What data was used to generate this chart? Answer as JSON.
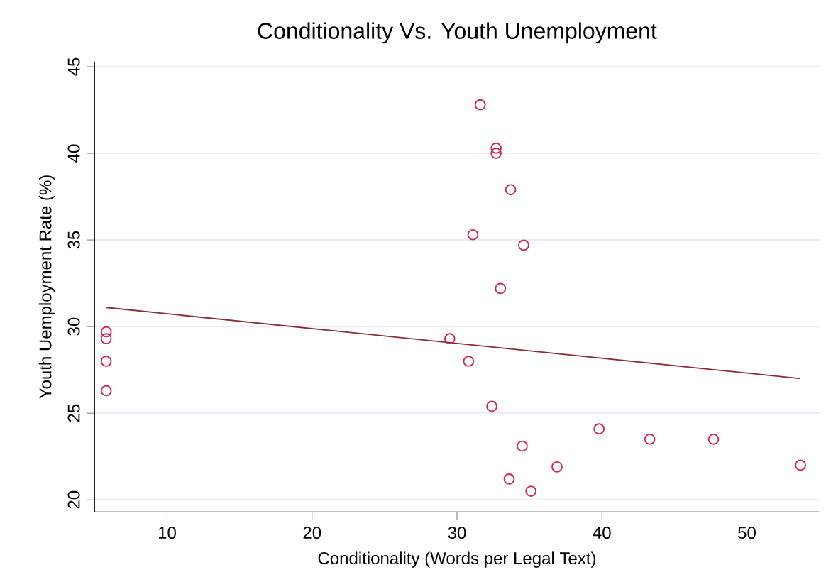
{
  "chart_data": {
    "type": "scatter",
    "title": "Conditionality Vs. Youth Unemployment",
    "xlabel": "Conditionality (Words per Legal Text)",
    "ylabel": "Youth Uemployment Rate (%)",
    "xlim": [
      5,
      55
    ],
    "ylim": [
      19.3,
      45.3
    ],
    "xticks": [
      10,
      20,
      30,
      40,
      50
    ],
    "yticks": [
      20,
      25,
      30,
      35,
      40,
      45
    ],
    "grid": "y",
    "marker": "circle",
    "series": [
      {
        "color": "#d0284f",
        "x": [
          5.8,
          5.8,
          5.8,
          5.8,
          29.5,
          30.8,
          31.6,
          32.7,
          32.7,
          33.7,
          31.1,
          34.6,
          33.0,
          32.4,
          34.5,
          33.6,
          35.1,
          36.9,
          39.8,
          43.3,
          47.7,
          53.7
        ],
        "values": [
          29.7,
          29.3,
          28.0,
          26.3,
          29.3,
          28.0,
          42.8,
          40.3,
          40.0,
          37.9,
          35.3,
          34.7,
          32.2,
          25.4,
          23.1,
          21.2,
          20.5,
          21.9,
          24.1,
          23.5,
          23.5,
          22.0
        ]
      },
      {
        "type": "line",
        "marker": "none",
        "color": "#8b2b35",
        "x": [
          5.8,
          53.7
        ],
        "values": [
          31.1,
          27.0
        ]
      }
    ]
  }
}
